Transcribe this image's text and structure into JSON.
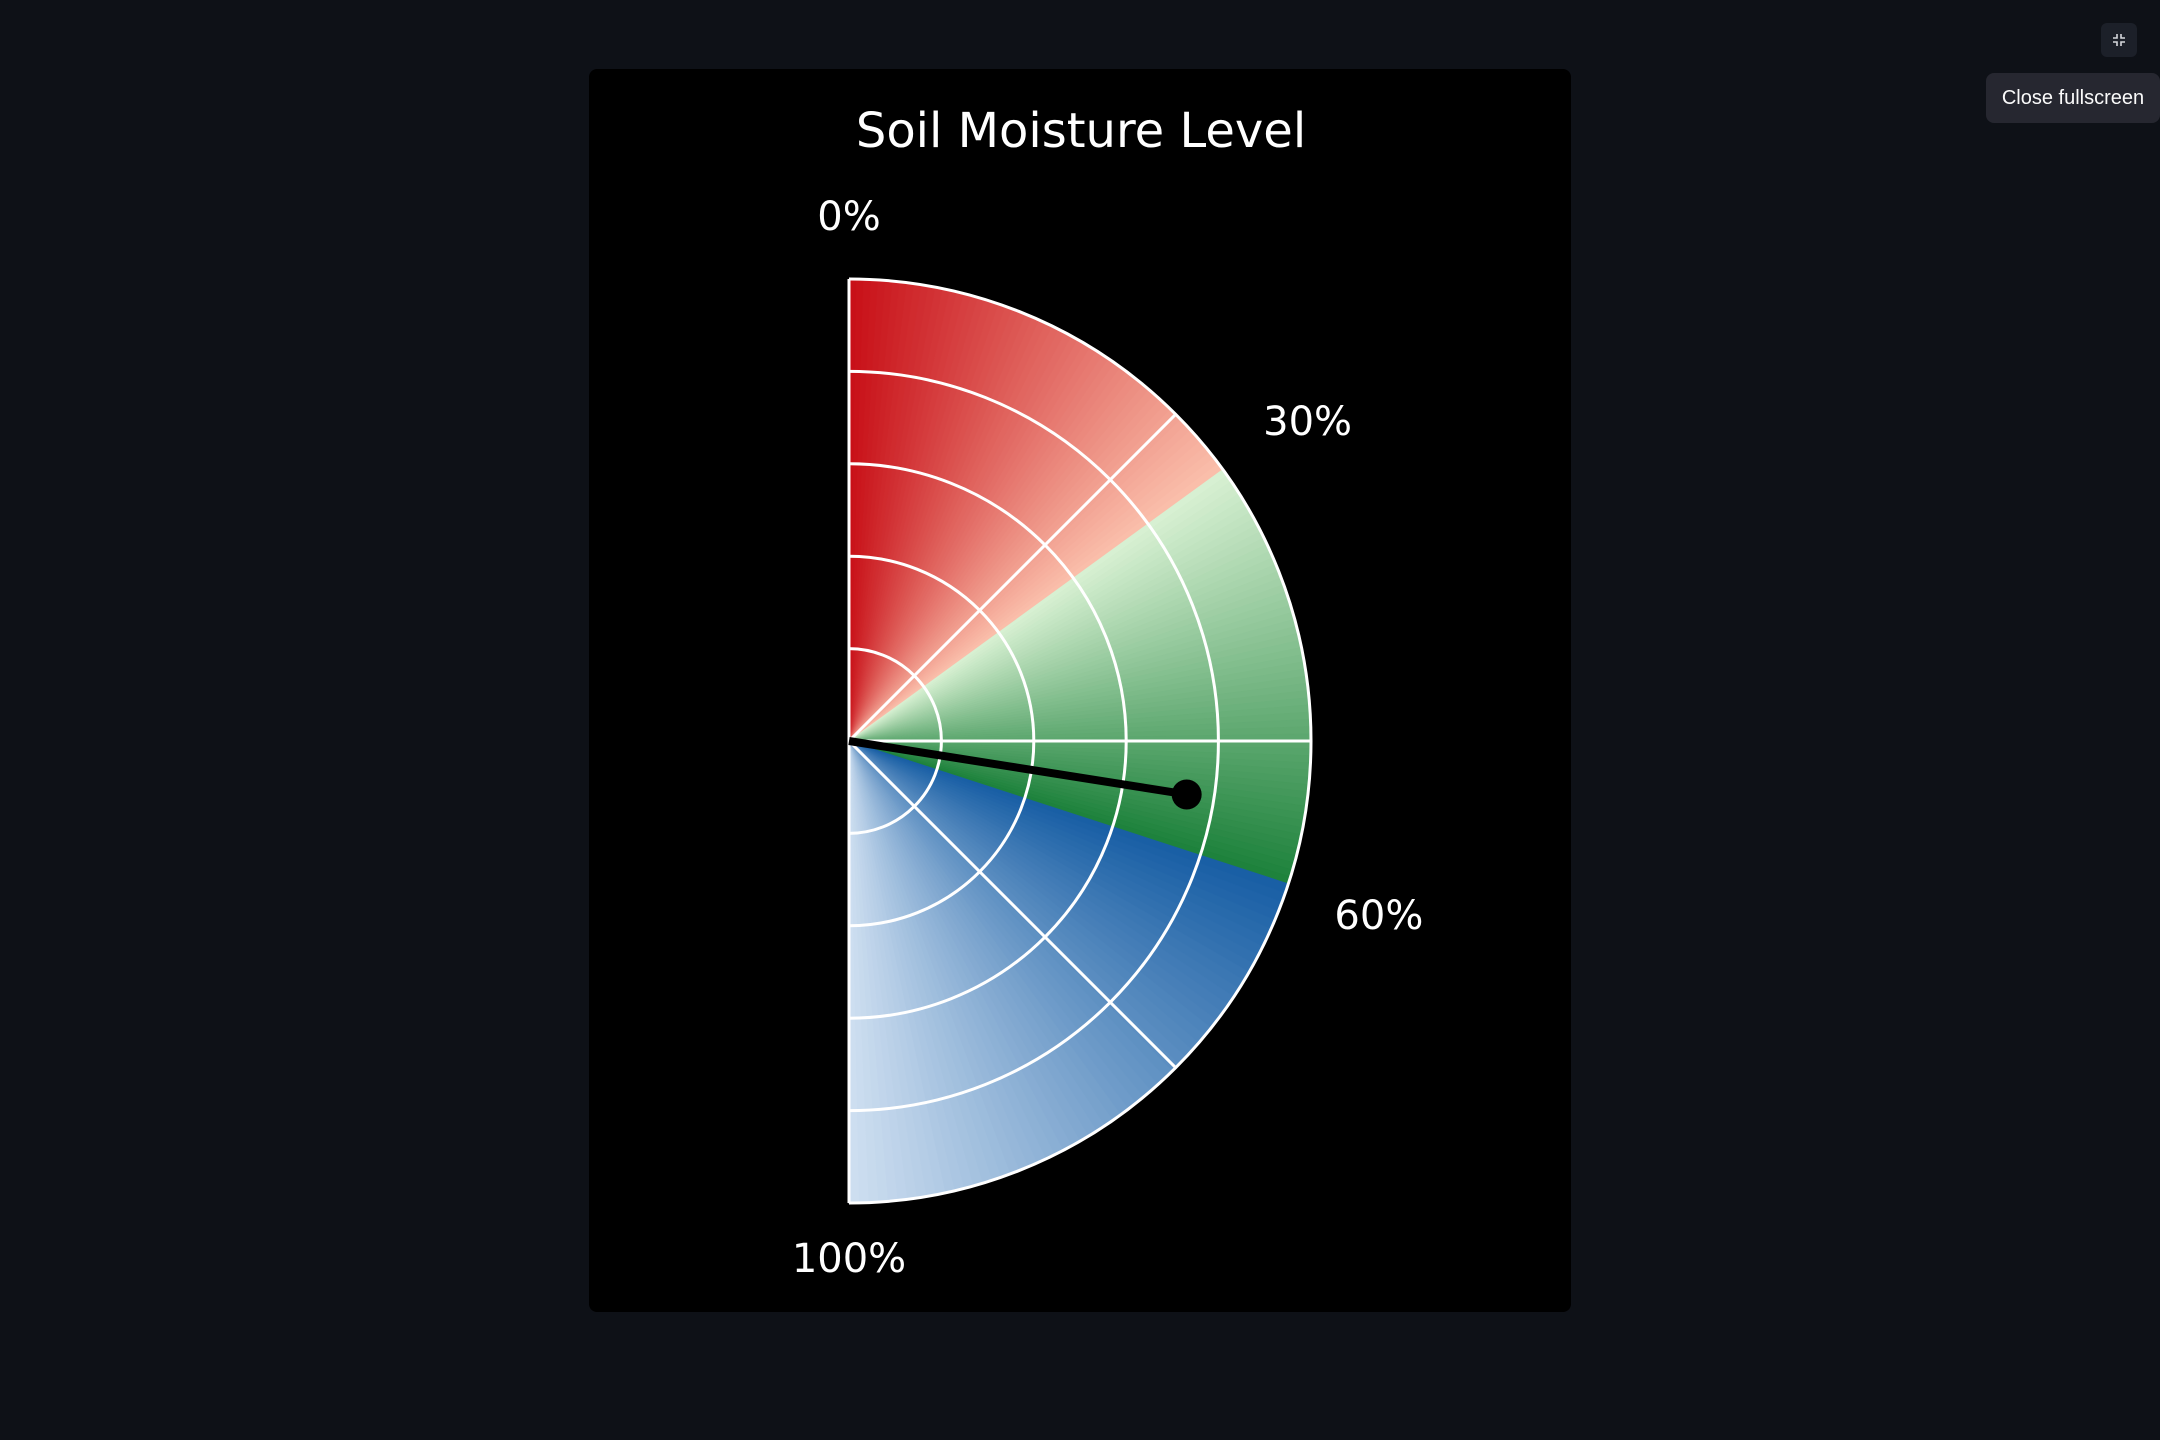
{
  "toolbar": {
    "tooltip_text": "Close fullscreen",
    "icon": "exit-fullscreen-icon"
  },
  "colors": {
    "page_background": "#0e1117",
    "chart_background": "#000000",
    "low_zone": "#d7191c",
    "optimal_zone": "#1a9641",
    "high_zone": "#2166ac",
    "needle": "#000000",
    "grid": "#ffffff"
  },
  "chart_data": {
    "type": "gauge",
    "title": "Soil Moisture Level",
    "value": 55,
    "range": [
      0,
      100
    ],
    "unit": "%",
    "zones": [
      {
        "from": 0,
        "to": 30,
        "color_scale": "Reds"
      },
      {
        "from": 30,
        "to": 60,
        "color_scale": "Greens"
      },
      {
        "from": 60,
        "to": 100,
        "color_scale": "Blues"
      }
    ],
    "tick_labels": [
      {
        "value": 0,
        "label": "0%"
      },
      {
        "value": 30,
        "label": "30%"
      },
      {
        "value": 60,
        "label": "60%"
      },
      {
        "value": 100,
        "label": "100%"
      }
    ],
    "grid": true,
    "radial_rings": 5,
    "angular_gridlines_deg": [
      0,
      45,
      90,
      135,
      180
    ]
  }
}
